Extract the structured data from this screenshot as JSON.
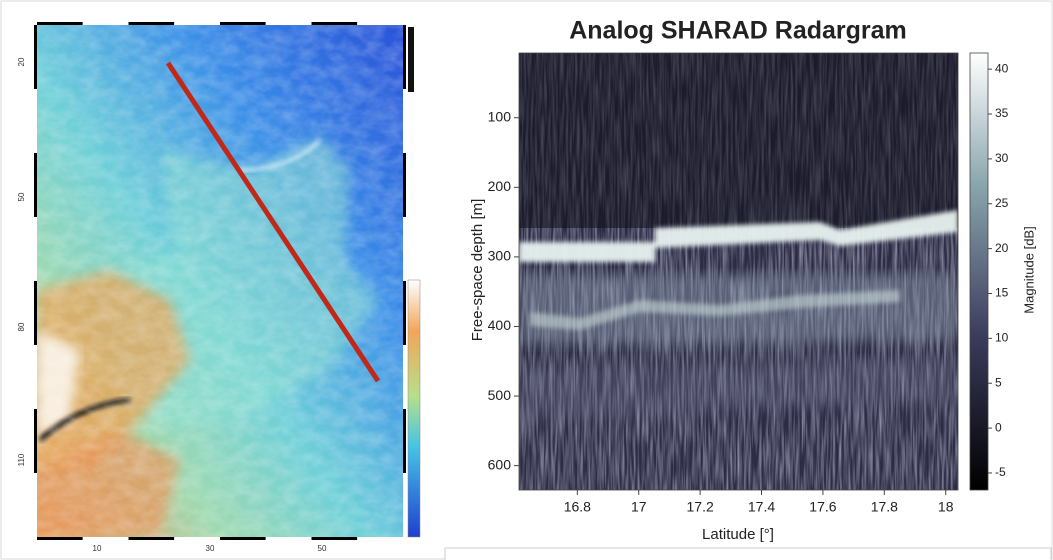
{
  "chart_data": [
    {
      "type": "map",
      "xtick_labels": [
        "10",
        "30",
        "50"
      ],
      "ytick_labels": [
        "20",
        "50",
        "80",
        "110"
      ]
    },
    {
      "type": "heatmap",
      "title": "Analog SHARAD Radargram",
      "xlabel": "Latitude [°]",
      "ylabel": "Free-space depth [m]",
      "xlim": [
        16.61,
        18.04
      ],
      "ylim": [
        635,
        7
      ],
      "xticks": [
        16.8,
        17,
        17.2,
        17.4,
        17.6,
        17.8,
        18
      ],
      "yticks": [
        100,
        200,
        300,
        400,
        500,
        600
      ],
      "colorbar": {
        "label": "Magnitude [dB]",
        "lim": [
          -6.9,
          41.8
        ],
        "ticks": [
          -5,
          0,
          5,
          10,
          15,
          20,
          25,
          30,
          35,
          40
        ]
      }
    }
  ]
}
